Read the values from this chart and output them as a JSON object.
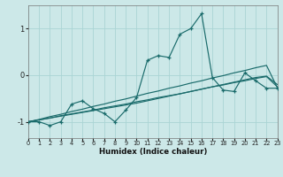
{
  "xlabel": "Humidex (Indice chaleur)",
  "bg_color": "#cce8e8",
  "line_color": "#1a6b6b",
  "grid_color": "#aad4d4",
  "x_data": [
    0,
    1,
    2,
    3,
    4,
    5,
    6,
    7,
    8,
    9,
    10,
    11,
    12,
    13,
    14,
    15,
    16,
    17,
    18,
    19,
    20,
    21,
    22,
    23
  ],
  "y_main": [
    -1.0,
    -1.0,
    -1.08,
    -1.0,
    -0.62,
    -0.55,
    -0.72,
    -0.82,
    -1.0,
    -0.75,
    -0.48,
    0.32,
    0.42,
    0.38,
    0.88,
    1.0,
    1.32,
    -0.05,
    -0.32,
    -0.35,
    0.05,
    -0.12,
    -0.28,
    -0.28
  ],
  "y_line1": [
    -1.0,
    -0.96,
    -0.92,
    -0.88,
    -0.84,
    -0.8,
    -0.76,
    -0.72,
    -0.68,
    -0.64,
    -0.6,
    -0.55,
    -0.5,
    -0.45,
    -0.4,
    -0.35,
    -0.3,
    -0.25,
    -0.2,
    -0.15,
    -0.1,
    -0.05,
    -0.02,
    -0.2
  ],
  "y_line2": [
    -1.0,
    -0.96,
    -0.92,
    -0.87,
    -0.83,
    -0.79,
    -0.75,
    -0.7,
    -0.66,
    -0.62,
    -0.57,
    -0.53,
    -0.48,
    -0.44,
    -0.4,
    -0.35,
    -0.3,
    -0.25,
    -0.21,
    -0.16,
    -0.12,
    -0.07,
    -0.03,
    -0.25
  ],
  "y_line3": [
    -1.0,
    -0.95,
    -0.89,
    -0.84,
    -0.78,
    -0.73,
    -0.67,
    -0.62,
    -0.56,
    -0.51,
    -0.45,
    -0.39,
    -0.34,
    -0.28,
    -0.23,
    -0.17,
    -0.12,
    -0.06,
    -0.01,
    0.05,
    0.1,
    0.16,
    0.21,
    -0.27
  ],
  "xlim": [
    0,
    23
  ],
  "ylim": [
    -1.35,
    1.5
  ],
  "yticks": [
    -1,
    0,
    1
  ],
  "xticks": [
    0,
    1,
    2,
    3,
    4,
    5,
    6,
    7,
    8,
    9,
    10,
    11,
    12,
    13,
    14,
    15,
    16,
    17,
    18,
    19,
    20,
    21,
    22,
    23
  ]
}
